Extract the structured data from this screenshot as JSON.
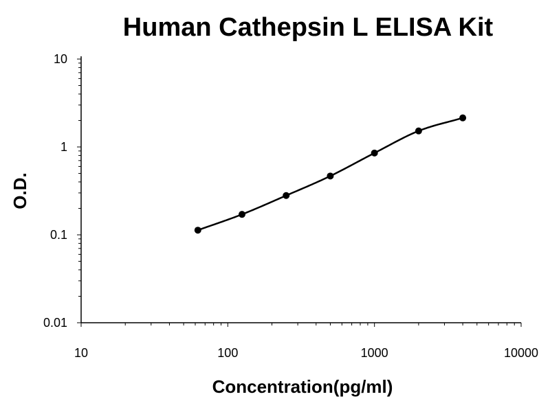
{
  "chart_data": {
    "type": "scatter",
    "title": "Human Cathepsin L ELISA Kit",
    "xlabel": "Concentration(pg/ml)",
    "ylabel": "O.D.",
    "x_scale": "log",
    "y_scale": "log",
    "xlim": [
      10,
      10000
    ],
    "ylim": [
      0.01,
      10
    ],
    "x_ticks": [
      "10",
      "100",
      "1000",
      "10000"
    ],
    "y_ticks": [
      "0.01",
      "0.1",
      "1",
      "10"
    ],
    "grid": false,
    "legend": "none",
    "fit_curve": true,
    "series": [
      {
        "x": [
          62.5,
          125,
          250,
          500,
          1000,
          2000,
          4000
        ],
        "y": [
          0.113,
          0.171,
          0.28,
          0.467,
          0.853,
          1.521,
          2.141
        ]
      }
    ],
    "colors": {
      "marker": "#000000",
      "curve": "#000000",
      "axis": "#000000"
    }
  }
}
